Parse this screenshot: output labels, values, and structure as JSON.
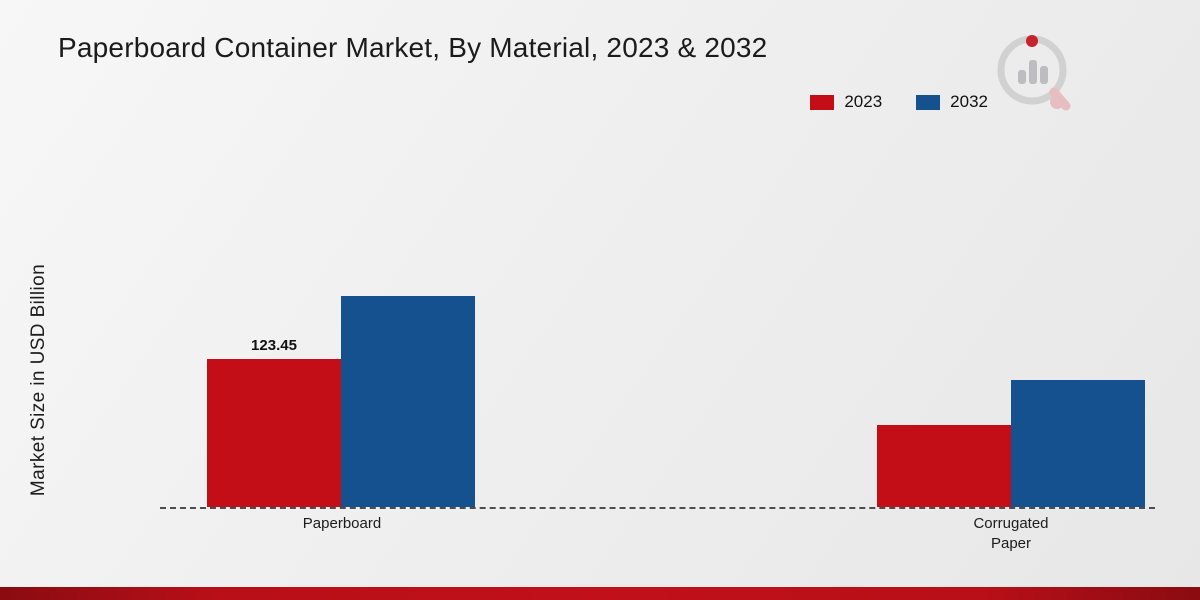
{
  "page": {
    "title": "Paperboard Container Market, By Material, 2023 & 2032"
  },
  "legend": {
    "items": [
      {
        "label": "2023",
        "color": "#c30d17"
      },
      {
        "label": "2032",
        "color": "#15508f"
      }
    ]
  },
  "chart_data": {
    "type": "bar",
    "title": "Paperboard Container Market, By Material, 2023 & 2032",
    "xlabel": "",
    "ylabel": "Market Size in USD Billion",
    "categories": [
      "Paperboard",
      "Corrugated\nPaper"
    ],
    "series": [
      {
        "name": "2023",
        "color": "#c30d17",
        "values": [
          123.45,
          68
        ],
        "labels": [
          "123.45",
          ""
        ]
      },
      {
        "name": "2032",
        "color": "#15508f",
        "values": [
          176,
          106
        ],
        "labels": [
          "",
          ""
        ]
      }
    ],
    "ylim": [
      0,
      200
    ],
    "grid": false,
    "legend_position": "top-right",
    "baseline_style": "dashed"
  },
  "branding": {
    "logo": "market-research-logo",
    "footer_accent_color": "#b80f18"
  }
}
